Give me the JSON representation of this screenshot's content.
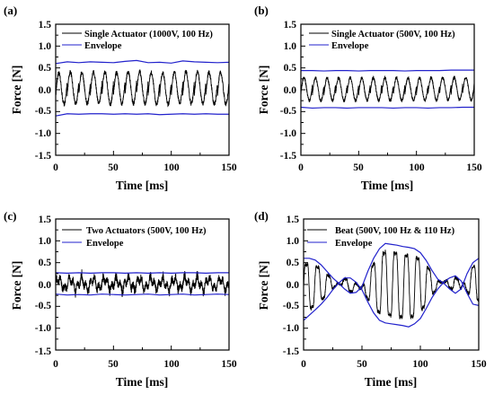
{
  "colors": {
    "signal": "#000000",
    "envelope": "#2222cc",
    "axes": "#000000"
  },
  "chart_data": [
    {
      "panel": "(a)",
      "type": "line",
      "xlabel": "Time [ms]",
      "ylabel": "Force [N]",
      "xlim": [
        0,
        150
      ],
      "ylim": [
        -1.5,
        1.5
      ],
      "xticks": [
        "0",
        "50",
        "100",
        "150"
      ],
      "yticks": [
        "-1.5",
        "-1.0",
        "-0.5",
        "0.0",
        "0.5",
        "1.0",
        "1.5"
      ],
      "legend_position": "top-right",
      "kind": "sine",
      "frequency_hz": 100,
      "amplitude": 0.6,
      "series": [
        {
          "name": "Single Actuator (1000V, 100 Hz)",
          "values": "waveform"
        },
        {
          "name": "Envelope",
          "upper": {
            "x": [
              0,
              10,
              20,
              30,
              40,
              50,
              60,
              70,
              80,
              90,
              100,
              110,
              120,
              130,
              140,
              150
            ],
            "y": [
              0.6,
              0.64,
              0.62,
              0.64,
              0.63,
              0.62,
              0.65,
              0.67,
              0.62,
              0.63,
              0.61,
              0.66,
              0.64,
              0.63,
              0.62,
              0.63
            ]
          },
          "lower": {
            "x": [
              0,
              10,
              20,
              30,
              40,
              50,
              60,
              70,
              80,
              90,
              100,
              110,
              120,
              130,
              140,
              150
            ],
            "y": [
              -0.6,
              -0.55,
              -0.56,
              -0.55,
              -0.55,
              -0.56,
              -0.55,
              -0.56,
              -0.55,
              -0.57,
              -0.56,
              -0.55,
              -0.56,
              -0.55,
              -0.56,
              -0.56
            ]
          }
        }
      ]
    },
    {
      "panel": "(b)",
      "type": "line",
      "xlabel": "Time [ms]",
      "ylabel": "Force [N]",
      "xlim": [
        0,
        150
      ],
      "ylim": [
        -1.5,
        1.5
      ],
      "xticks": [
        "0",
        "50",
        "100",
        "150"
      ],
      "yticks": [
        "-1.5",
        "-1.0",
        "-0.5",
        "0.0",
        "0.5",
        "1.0",
        "1.5"
      ],
      "legend_position": "top-right",
      "kind": "sine",
      "frequency_hz": 100,
      "amplitude": 0.42,
      "series": [
        {
          "name": "Single Actuator (500V, 100 Hz)",
          "values": "waveform"
        },
        {
          "name": "Envelope",
          "upper": {
            "x": [
              0,
              10,
              20,
              30,
              40,
              50,
              60,
              70,
              80,
              90,
              100,
              110,
              120,
              130,
              140,
              150
            ],
            "y": [
              0.44,
              0.44,
              0.43,
              0.44,
              0.44,
              0.43,
              0.44,
              0.44,
              0.44,
              0.43,
              0.44,
              0.44,
              0.44,
              0.45,
              0.45,
              0.45
            ]
          },
          "lower": {
            "x": [
              0,
              10,
              20,
              30,
              40,
              50,
              60,
              70,
              80,
              90,
              100,
              110,
              120,
              130,
              140,
              150
            ],
            "y": [
              -0.4,
              -0.42,
              -0.41,
              -0.41,
              -0.42,
              -0.41,
              -0.41,
              -0.41,
              -0.42,
              -0.41,
              -0.41,
              -0.42,
              -0.41,
              -0.41,
              -0.4,
              -0.4
            ]
          }
        }
      ]
    },
    {
      "panel": "(c)",
      "type": "line",
      "xlabel": "Time [ms]",
      "ylabel": "Force [N]",
      "xlim": [
        0,
        150
      ],
      "ylim": [
        -1.5,
        1.5
      ],
      "xticks": [
        "0",
        "50",
        "100",
        "150"
      ],
      "yticks": [
        "-1.5",
        "-1.0",
        "-0.5",
        "0.0",
        "0.5",
        "1.0",
        "1.5"
      ],
      "legend_position": "top-right",
      "kind": "noise",
      "frequency_hz": 100,
      "amplitude": 0.2,
      "series": [
        {
          "name": "Two Actuators (500V, 100 Hz)",
          "values": "waveform"
        },
        {
          "name": "Envelope",
          "upper": {
            "x": [
              0,
              10,
              20,
              30,
              40,
              50,
              60,
              70,
              80,
              90,
              100,
              110,
              120,
              130,
              140,
              150
            ],
            "y": [
              0.27,
              0.26,
              0.27,
              0.26,
              0.27,
              0.27,
              0.26,
              0.27,
              0.26,
              0.27,
              0.26,
              0.27,
              0.27,
              0.26,
              0.27,
              0.27
            ]
          },
          "lower": {
            "x": [
              0,
              10,
              20,
              30,
              40,
              50,
              60,
              70,
              80,
              90,
              100,
              110,
              120,
              130,
              140,
              150
            ],
            "y": [
              -0.22,
              -0.24,
              -0.23,
              -0.24,
              -0.22,
              -0.23,
              -0.24,
              -0.23,
              -0.22,
              -0.24,
              -0.23,
              -0.22,
              -0.24,
              -0.23,
              -0.22,
              -0.23
            ]
          }
        }
      ]
    },
    {
      "panel": "(d)",
      "type": "line",
      "xlabel": "Time [ms]",
      "ylabel": "Force [N]",
      "xlim": [
        0,
        150
      ],
      "ylim": [
        -1.5,
        1.5
      ],
      "xticks": [
        "0",
        "50",
        "100",
        "150"
      ],
      "yticks": [
        "-1.5",
        "-1.0",
        "-0.5",
        "0.0",
        "0.5",
        "1.0",
        "1.5"
      ],
      "legend_position": "top-left",
      "kind": "beat",
      "frequency_hz": 105,
      "amplitude": 0.9,
      "series": [
        {
          "name": "Beat (500V, 100 Hz & 110 Hz)",
          "values": "waveform"
        },
        {
          "name": "Envelope",
          "upper": {
            "x": [
              0,
              5,
              10,
              15,
              20,
              25,
              30,
              35,
              40,
              45,
              50,
              55,
              60,
              65,
              70,
              75,
              80,
              85,
              90,
              95,
              100,
              105,
              110,
              115,
              120,
              125,
              130,
              135,
              140,
              145,
              150
            ],
            "y": [
              0.6,
              0.6,
              0.56,
              0.45,
              0.3,
              0.15,
              0.03,
              -0.1,
              -0.2,
              -0.18,
              -0.05,
              0.3,
              0.6,
              0.82,
              0.94,
              0.92,
              0.9,
              0.87,
              0.85,
              0.82,
              0.73,
              0.55,
              0.32,
              0.12,
              0.03,
              -0.1,
              -0.2,
              -0.1,
              0.25,
              0.5,
              0.6
            ]
          },
          "lower": {
            "x": [
              0,
              5,
              10,
              15,
              20,
              25,
              30,
              35,
              40,
              45,
              50,
              55,
              60,
              65,
              70,
              75,
              80,
              85,
              90,
              95,
              100,
              105,
              110,
              115,
              120,
              125,
              130,
              135,
              140,
              145,
              150
            ],
            "y": [
              -0.82,
              -0.7,
              -0.58,
              -0.45,
              -0.3,
              -0.12,
              0.03,
              0.15,
              0.15,
              0.05,
              -0.12,
              -0.4,
              -0.65,
              -0.82,
              -0.88,
              -0.9,
              -0.92,
              -0.94,
              -0.97,
              -0.9,
              -0.78,
              -0.55,
              -0.3,
              -0.1,
              0.05,
              0.15,
              0.2,
              0.08,
              -0.2,
              -0.45,
              -0.48
            ]
          }
        }
      ]
    }
  ]
}
